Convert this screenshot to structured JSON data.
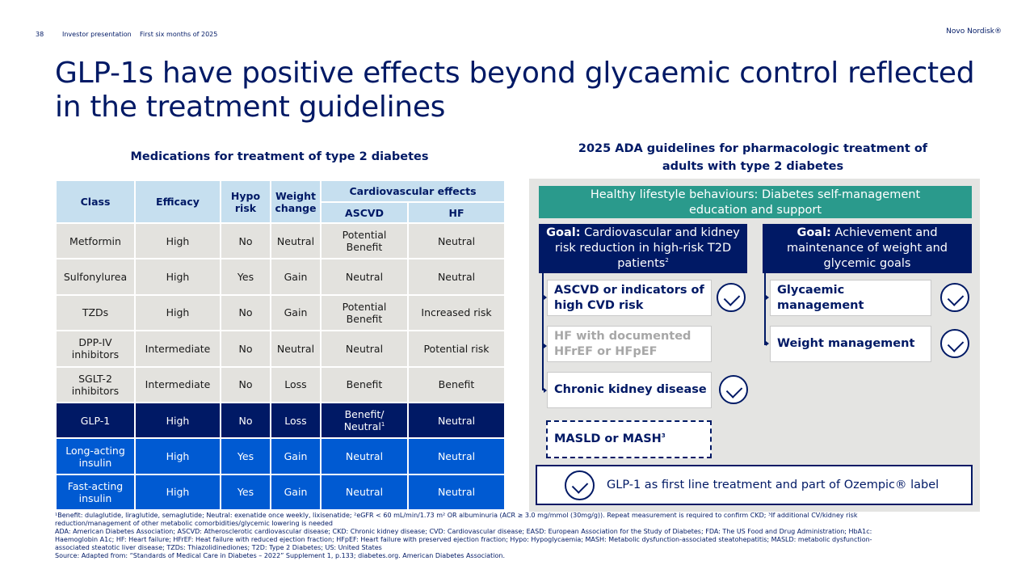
{
  "header": {
    "page_number": "38",
    "section": "Investor presentation",
    "period": "First six months of 2025",
    "brand": "Novo Nordisk®"
  },
  "title_line1": "GLP-1s have positive effects beyond glycaemic control reflected",
  "title_line2": "in the treatment guidelines",
  "left_subtitle": "Medications for treatment of type 2 diabetes",
  "right_subtitle_line1": "2025 ADA guidelines for pharmacologic treatment of",
  "right_subtitle_line2": "adults with type 2 diabetes",
  "table": {
    "headers": {
      "class": "Class",
      "efficacy": "Efficacy",
      "hypo_line1": "Hypo",
      "hypo_line2": "risk",
      "weight_line1": "Weight",
      "weight_line2": "change",
      "cv": "Cardiovascular effects",
      "ascvd": "ASCVD",
      "hf": "HF"
    },
    "rows": [
      {
        "class_1": "Metformin",
        "class_2": "",
        "efficacy": "High",
        "hypo": "No",
        "weight": "Neutral",
        "ascvd_1": "Potential",
        "ascvd_2": "Benefit",
        "hf": "Neutral"
      },
      {
        "class_1": "Sulfonylurea",
        "class_2": "",
        "efficacy": "High",
        "hypo": "Yes",
        "weight": "Gain",
        "ascvd_1": "Neutral",
        "ascvd_2": "",
        "hf": "Neutral"
      },
      {
        "class_1": "TZDs",
        "class_2": "",
        "efficacy": "High",
        "hypo": "No",
        "weight": "Gain",
        "ascvd_1": "Potential",
        "ascvd_2": "Benefit",
        "hf": "Increased risk"
      },
      {
        "class_1": "DPP-IV",
        "class_2": "inhibitors",
        "efficacy": "Intermediate",
        "hypo": "No",
        "weight": "Neutral",
        "ascvd_1": "Neutral",
        "ascvd_2": "",
        "hf": "Potential risk"
      },
      {
        "class_1": "SGLT-2",
        "class_2": "inhibitors",
        "efficacy": "Intermediate",
        "hypo": "No",
        "weight": "Loss",
        "ascvd_1": "Benefit",
        "ascvd_2": "",
        "hf": "Benefit"
      },
      {
        "class_1": "GLP-1",
        "class_2": "",
        "efficacy": "High",
        "hypo": "No",
        "weight": "Loss",
        "ascvd_1": "Benefit/",
        "ascvd_2": "Neutral",
        "ascvd_sup": "1",
        "hf": "Neutral"
      },
      {
        "class_1": "Long-acting",
        "class_2": "insulin",
        "efficacy": "High",
        "hypo": "Yes",
        "weight": "Gain",
        "ascvd_1": "Neutral",
        "ascvd_2": "",
        "hf": "Neutral"
      },
      {
        "class_1": "Fast-acting",
        "class_2": "insulin",
        "efficacy": "High",
        "hypo": "Yes",
        "weight": "Gain",
        "ascvd_1": "Neutral",
        "ascvd_2": "",
        "hf": "Neutral"
      }
    ]
  },
  "guidelines": {
    "lifestyle_line1": "Healthy lifestyle behaviours: Diabetes self-management",
    "lifestyle_line2": "education and support",
    "goal_label": "Goal:",
    "goal_left_line1": " Cardiovascular and kidney",
    "goal_left_line2": "risk reduction in high-risk T2D",
    "goal_left_line3": "patients",
    "goal_left_sup": "2",
    "goal_right_line1": " Achievement and",
    "goal_right_line2": "maintenance of weight and",
    "goal_right_line3": "glycemic goals",
    "ascvd_line1": "ASCVD or indicators of",
    "ascvd_line2": "high CVD risk",
    "hf_line1": "HF with documented",
    "hf_line2": "HFrEF or HFpEF",
    "ckd": "Chronic kidney disease",
    "masld": "MASLD or MASH",
    "masld_sup": "3",
    "glycaemic_line1": "Glycaemic",
    "glycaemic_line2": "management",
    "weight": "Weight management",
    "first_line": "GLP-1 as first line treatment and part of Ozempic® label"
  },
  "footnotes": {
    "line1": "¹Benefit: dulaglutide, liraglutide, semaglutide; Neutral: exenatide once weekly, lixisenatide; ²eGFR < 60 mL/min/1.73 m² OR albuminuria (ACR ≥ 3.0 mg/mmol (30mg/g)). Repeat measurement is required to confirm CKD; ³If additional CV/kidney risk",
    "line2": "reduction/management of other metabolic comorbidities/glycemic lowering is needed",
    "line3": "ADA: American Diabetes Association; ASCVD: Atherosclerotic cardiovascular disease; CKD: Chronic kidney disease; CVD: Cardiovascular disease; EASD: European Association for the Study of Diabetes; FDA: The US Food and Drug Administration; HbA1c:",
    "line4": "Haemoglobin A1c; HF: Heart failure; HFrEF: Heat failure with reduced ejection fraction; HFpEF: Heart failure with preserved ejection fraction; Hypo: Hypoglycaemia; MASH: Metabolic dysfunction-associated steatohepatitis; MASLD: metabolic dysfunction-",
    "line5": "associated steatotic liver disease; TZDs: Thiazolidinediones; T2D: Type 2 Diabetes; US: United States",
    "line6": "Source: Adapted from: “Standards of Medical Care in Diabetes – 2022” Supplement 1, p.133; diabetes.org. American Diabetes Association."
  },
  "colors": {
    "navy": "#001965",
    "blue": "#005ad2",
    "teal": "#2a9a8c",
    "header_blue": "#c6dfef",
    "row_grey": "#e3e2de",
    "panel_grey": "#e4e4e2"
  }
}
